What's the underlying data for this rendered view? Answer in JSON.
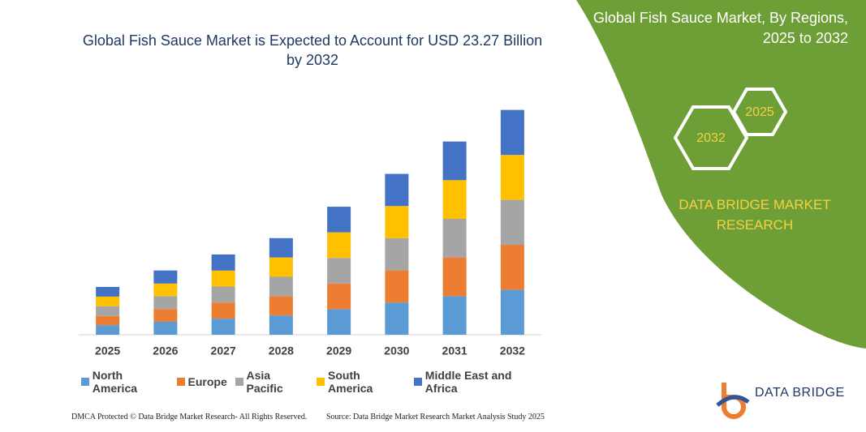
{
  "chart_data": {
    "type": "stacked_bar",
    "title": "Global Fish Sauce Market is Expected to Account for USD 23.27 Billion by 2032",
    "categories": [
      "2025",
      "2026",
      "2027",
      "2028",
      "2029",
      "2030",
      "2031",
      "2032"
    ],
    "series": [
      {
        "name": "North America",
        "color": "#5b9bd5",
        "values": [
          1.0,
          1.35,
          1.67,
          2.0,
          2.65,
          3.33,
          4.0,
          4.65
        ]
      },
      {
        "name": "Europe",
        "color": "#ed7d31",
        "values": [
          0.95,
          1.3,
          1.65,
          2.0,
          2.65,
          3.33,
          4.0,
          4.66
        ]
      },
      {
        "name": "Asia Pacific",
        "color": "#a5a5a5",
        "values": [
          1.0,
          1.35,
          1.67,
          2.0,
          2.65,
          3.33,
          4.0,
          4.65
        ]
      },
      {
        "name": "South America",
        "color": "#ffc000",
        "values": [
          1.0,
          1.3,
          1.65,
          2.0,
          2.65,
          3.33,
          4.0,
          4.65
        ]
      },
      {
        "name": "Middle East and Africa",
        "color": "#4472c4",
        "values": [
          1.0,
          1.35,
          1.67,
          2.0,
          2.65,
          3.33,
          4.0,
          4.66
        ]
      }
    ],
    "ylim": [
      0,
      25
    ],
    "legend": "bottom"
  },
  "panel": {
    "title": "Global Fish Sauce Market, By Regions, 2025 to 2032",
    "hex_small": "2025",
    "hex_large": "2032",
    "brand": "DATA BRIDGE MARKET RESEARCH"
  },
  "logo": {
    "text": "DATA BRIDGE"
  },
  "footer": {
    "left": "DMCA Protected © Data Bridge Market Research- All Rights Reserved.",
    "right": "Source: Data Bridge Market Research Market Analysis Study 2025"
  }
}
